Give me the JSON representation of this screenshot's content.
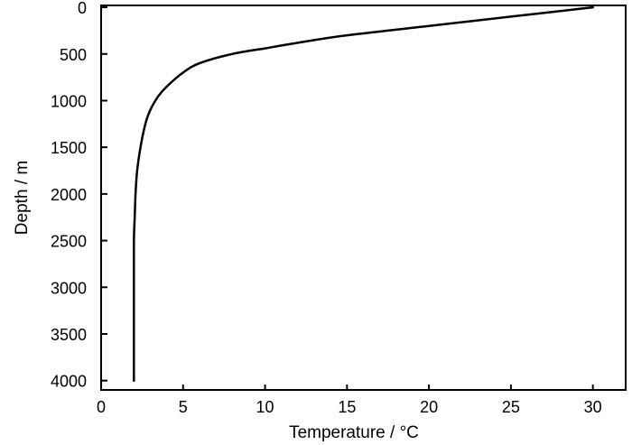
{
  "chart_data": {
    "type": "line",
    "title": "",
    "xlabel": "Temperature / °C",
    "ylabel": "Depth / m",
    "xlim": [
      0,
      32
    ],
    "ylim": [
      4100,
      -20
    ],
    "y_inverted": true,
    "x_ticks": [
      0,
      5,
      10,
      15,
      20,
      25,
      30
    ],
    "x_tick_labels": [
      "0",
      "5",
      "10",
      "15",
      "20",
      "25",
      "30"
    ],
    "y_ticks": [
      0,
      500,
      1000,
      1500,
      2000,
      2500,
      3000,
      3500,
      4000
    ],
    "y_tick_labels": [
      "0",
      "500",
      "1000",
      "1500",
      "2000",
      "2500",
      "3000",
      "3500",
      "4000"
    ],
    "grid": false,
    "series": [
      {
        "color": "#000000",
        "x": [
          30,
          25,
          20,
          15,
          12,
          10,
          8,
          6,
          5,
          4,
          3.5,
          3,
          2.7,
          2.4,
          2.2,
          2.1,
          2.05,
          2.0,
          2.0,
          2.0
        ],
        "y": [
          0,
          100,
          200,
          300,
          380,
          440,
          500,
          600,
          700,
          850,
          950,
          1100,
          1250,
          1500,
          1750,
          2000,
          2250,
          2500,
          3000,
          4000
        ]
      }
    ]
  }
}
